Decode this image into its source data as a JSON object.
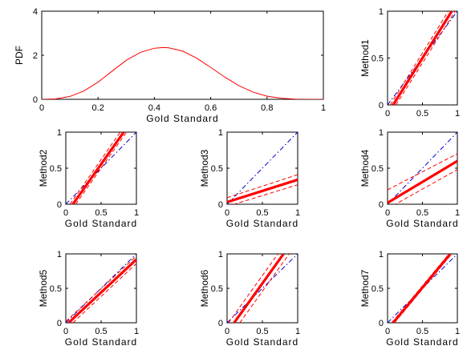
{
  "colors": {
    "fit": "#ff0000",
    "confidence": "#ff0000",
    "identity": "#0000cc",
    "pdf_curve": "#ff0000",
    "axes": "#000000"
  },
  "chart_data": [
    {
      "id": "pdf",
      "type": "line",
      "xlabel": "Gold Standard",
      "ylabel": "PDF",
      "xlim": [
        0,
        1
      ],
      "ylim": [
        0,
        4
      ],
      "xticks": [
        "0",
        "0.2",
        "0.4",
        "0.6",
        "0.8",
        "1"
      ],
      "yticks": [
        "0",
        "2",
        "4"
      ],
      "series": [
        {
          "x": [
            0,
            0.05,
            0.1,
            0.15,
            0.2,
            0.25,
            0.3,
            0.35,
            0.4,
            0.43,
            0.45,
            0.5,
            0.55,
            0.6,
            0.65,
            0.7,
            0.75,
            0.8,
            0.85,
            0.9,
            0.95,
            1
          ],
          "y": [
            0,
            0.02,
            0.13,
            0.38,
            0.78,
            1.28,
            1.77,
            2.13,
            2.32,
            2.35,
            2.34,
            2.19,
            1.87,
            1.45,
            1.01,
            0.62,
            0.33,
            0.14,
            0.05,
            0.01,
            0,
            0
          ]
        }
      ],
      "grid": false
    },
    {
      "id": "method1",
      "type": "line",
      "xlabel": "",
      "ylabel": "Method1",
      "xlim": [
        0,
        1
      ],
      "ylim": [
        0,
        1
      ],
      "xticks": [
        "0",
        "0.5",
        "1"
      ],
      "yticks": [
        "0",
        "0.5",
        "1"
      ],
      "identity": [
        [
          0,
          0
        ],
        [
          1,
          1
        ]
      ],
      "fit": [
        [
          0.08,
          0
        ],
        [
          0.92,
          1
        ]
      ],
      "ci_upper": [
        [
          0.04,
          0
        ],
        [
          0.87,
          1
        ]
      ],
      "ci_lower": [
        [
          0.12,
          0
        ],
        [
          0.97,
          1
        ]
      ]
    },
    {
      "id": "method2",
      "type": "line",
      "xlabel": "Gold Standard",
      "ylabel": "Method2",
      "xlim": [
        0,
        1
      ],
      "ylim": [
        0,
        1
      ],
      "xticks": [
        "0",
        "0.5",
        "1"
      ],
      "yticks": [
        "0",
        "0.5",
        "1"
      ],
      "identity": [
        [
          0,
          0
        ],
        [
          1,
          1
        ]
      ],
      "fit": [
        [
          0.1,
          0
        ],
        [
          0.82,
          1
        ]
      ],
      "ci_upper": [
        [
          0.06,
          0
        ],
        [
          0.77,
          1
        ]
      ],
      "ci_lower": [
        [
          0.14,
          0
        ],
        [
          0.86,
          1
        ]
      ]
    },
    {
      "id": "method3",
      "type": "line",
      "xlabel": "Gold Standard",
      "ylabel": "Method3",
      "xlim": [
        0,
        1
      ],
      "ylim": [
        0,
        1
      ],
      "xticks": [
        "0",
        "0.5",
        "1"
      ],
      "yticks": [
        "0",
        "0.5",
        "1"
      ],
      "identity": [
        [
          0,
          0
        ],
        [
          1,
          1
        ]
      ],
      "fit": [
        [
          0,
          0.03
        ],
        [
          1,
          0.34
        ]
      ],
      "ci_upper": [
        [
          0,
          0.09
        ],
        [
          1,
          0.41
        ]
      ],
      "ci_lower": [
        [
          0,
          -0.03
        ],
        [
          1,
          0.27
        ]
      ]
    },
    {
      "id": "method4",
      "type": "line",
      "xlabel": "Gold Standard",
      "ylabel": "Method4",
      "xlim": [
        0,
        1
      ],
      "ylim": [
        0,
        1
      ],
      "xticks": [
        "0",
        "0.5",
        "1"
      ],
      "yticks": [
        "0",
        "0.5",
        "1"
      ],
      "identity": [
        [
          0,
          0
        ],
        [
          1,
          1
        ]
      ],
      "fit": [
        [
          0,
          0.02
        ],
        [
          1,
          0.6
        ]
      ],
      "ci_upper": [
        [
          0,
          0.2
        ],
        [
          1,
          0.7
        ]
      ],
      "ci_lower": [
        [
          0,
          -0.06
        ],
        [
          1,
          0.48
        ]
      ]
    },
    {
      "id": "method5",
      "type": "line",
      "xlabel": "Gold Standard",
      "ylabel": "Method5",
      "xlim": [
        0,
        1
      ],
      "ylim": [
        0,
        1
      ],
      "xticks": [
        "0",
        "0.5",
        "1"
      ],
      "yticks": [
        "0",
        "0.5",
        "1"
      ],
      "identity": [
        [
          0,
          0
        ],
        [
          1,
          1
        ]
      ],
      "fit": [
        [
          0.04,
          0
        ],
        [
          1,
          0.92
        ]
      ],
      "ci_upper": [
        [
          0,
          0.02
        ],
        [
          1,
          0.97
        ]
      ],
      "ci_lower": [
        [
          0.1,
          0
        ],
        [
          1,
          0.86
        ]
      ]
    },
    {
      "id": "method6",
      "type": "line",
      "xlabel": "Gold Standard",
      "ylabel": "Method6",
      "xlim": [
        0,
        1
      ],
      "ylim": [
        0,
        1
      ],
      "xticks": [
        "0",
        "0.5",
        "1"
      ],
      "yticks": [
        "0",
        "0.5",
        "1"
      ],
      "identity": [
        [
          0,
          0
        ],
        [
          1,
          1
        ]
      ],
      "fit": [
        [
          0.1,
          0
        ],
        [
          0.8,
          1
        ]
      ],
      "ci_upper": [
        [
          0.02,
          0
        ],
        [
          0.72,
          1
        ]
      ],
      "ci_lower": [
        [
          0.18,
          0
        ],
        [
          0.88,
          1
        ]
      ]
    },
    {
      "id": "method7",
      "type": "line",
      "xlabel": "Gold Standard",
      "ylabel": "Method7",
      "xlim": [
        0,
        1
      ],
      "ylim": [
        0,
        1
      ],
      "xticks": [
        "0",
        "0.5",
        "1"
      ],
      "yticks": [
        "0",
        "0.5",
        "1"
      ],
      "identity": [
        [
          0,
          0
        ],
        [
          1,
          1
        ]
      ],
      "fit": [
        [
          0.08,
          0
        ],
        [
          0.9,
          1
        ]
      ],
      "ci_upper": [
        [
          0.06,
          0
        ],
        [
          0.88,
          1
        ]
      ],
      "ci_lower": [
        [
          0.1,
          0
        ],
        [
          0.92,
          1
        ]
      ]
    }
  ]
}
